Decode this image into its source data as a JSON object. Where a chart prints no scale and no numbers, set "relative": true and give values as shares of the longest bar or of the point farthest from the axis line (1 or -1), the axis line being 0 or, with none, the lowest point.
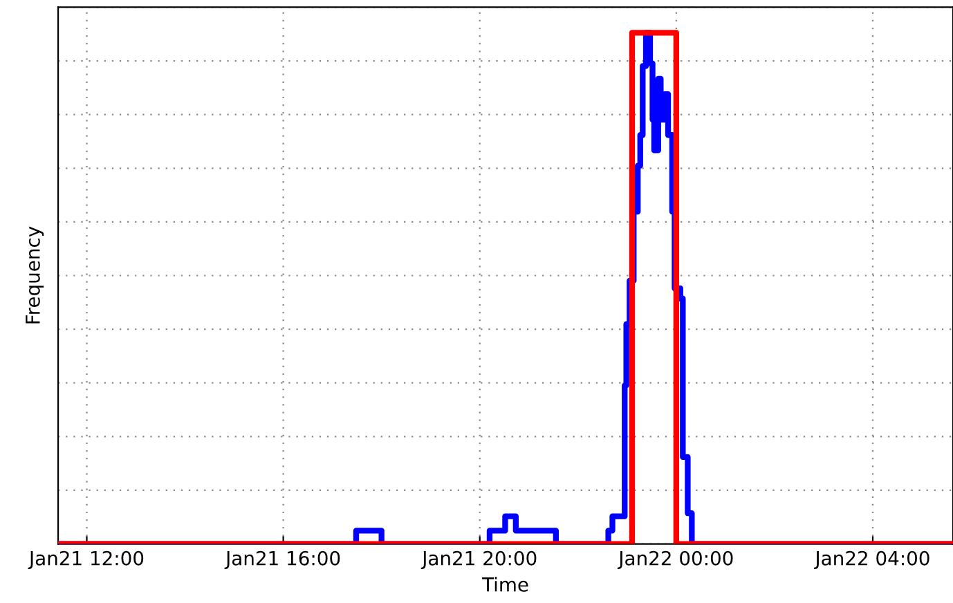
{
  "chart_data": {
    "type": "step",
    "xlabel": "Time",
    "ylabel": "Frequency",
    "relative": true,
    "grid": true,
    "xlim": [
      "2000-01-21T11:25",
      "2000-01-22T05:38"
    ],
    "xticks": [
      {
        "value": "2000-01-21T12:00",
        "label": "Jan21 12:00"
      },
      {
        "value": "2000-01-21T16:00",
        "label": "Jan21 16:00"
      },
      {
        "value": "2000-01-21T20:00",
        "label": "Jan21 20:00"
      },
      {
        "value": "2000-01-22T00:00",
        "label": "Jan22 00:00"
      },
      {
        "value": "2000-01-22T04:00",
        "label": "Jan22 04:00"
      }
    ],
    "series": [
      {
        "color": "#0000ff",
        "x": [
          "2000-01-21T11:25",
          "2000-01-21T17:29",
          "2000-01-21T18:00",
          "2000-01-21T20:12",
          "2000-01-21T20:31",
          "2000-01-21T20:44",
          "2000-01-21T21:33",
          "2000-01-21T22:37",
          "2000-01-21T22:42",
          "2000-01-21T22:57",
          "2000-01-21T22:59",
          "2000-01-21T23:03",
          "2000-01-21T23:08",
          "2000-01-21T23:13",
          "2000-01-21T23:16",
          "2000-01-21T23:19",
          "2000-01-21T23:23",
          "2000-01-21T23:28",
          "2000-01-21T23:31",
          "2000-01-21T23:33",
          "2000-01-21T23:38",
          "2000-01-21T23:41",
          "2000-01-21T23:46",
          "2000-01-21T23:50",
          "2000-01-21T23:55",
          "2000-01-21T23:58",
          "2000-01-22T00:05",
          "2000-01-22T00:08",
          "2000-01-22T00:14",
          "2000-01-22T00:19",
          "2000-01-22T00:25",
          "2000-01-22T05:38"
        ],
        "values": [
          0,
          0.026,
          0,
          0.026,
          0.054,
          0.026,
          0,
          0.026,
          0.054,
          0.31,
          0.43,
          0.515,
          0.65,
          0.74,
          0.8,
          0.935,
          1,
          0.94,
          0.83,
          0.77,
          0.91,
          0.83,
          0.88,
          0.8,
          0.65,
          0.5,
          0.48,
          0.17,
          0.06,
          0,
          0,
          0
        ]
      },
      {
        "color": "#ff0000",
        "x": [
          "2000-01-21T11:25",
          "2000-01-21T23:06",
          "2000-01-22T00:00",
          "2000-01-22T05:38"
        ],
        "values": [
          0,
          1,
          0,
          0
        ]
      }
    ]
  }
}
